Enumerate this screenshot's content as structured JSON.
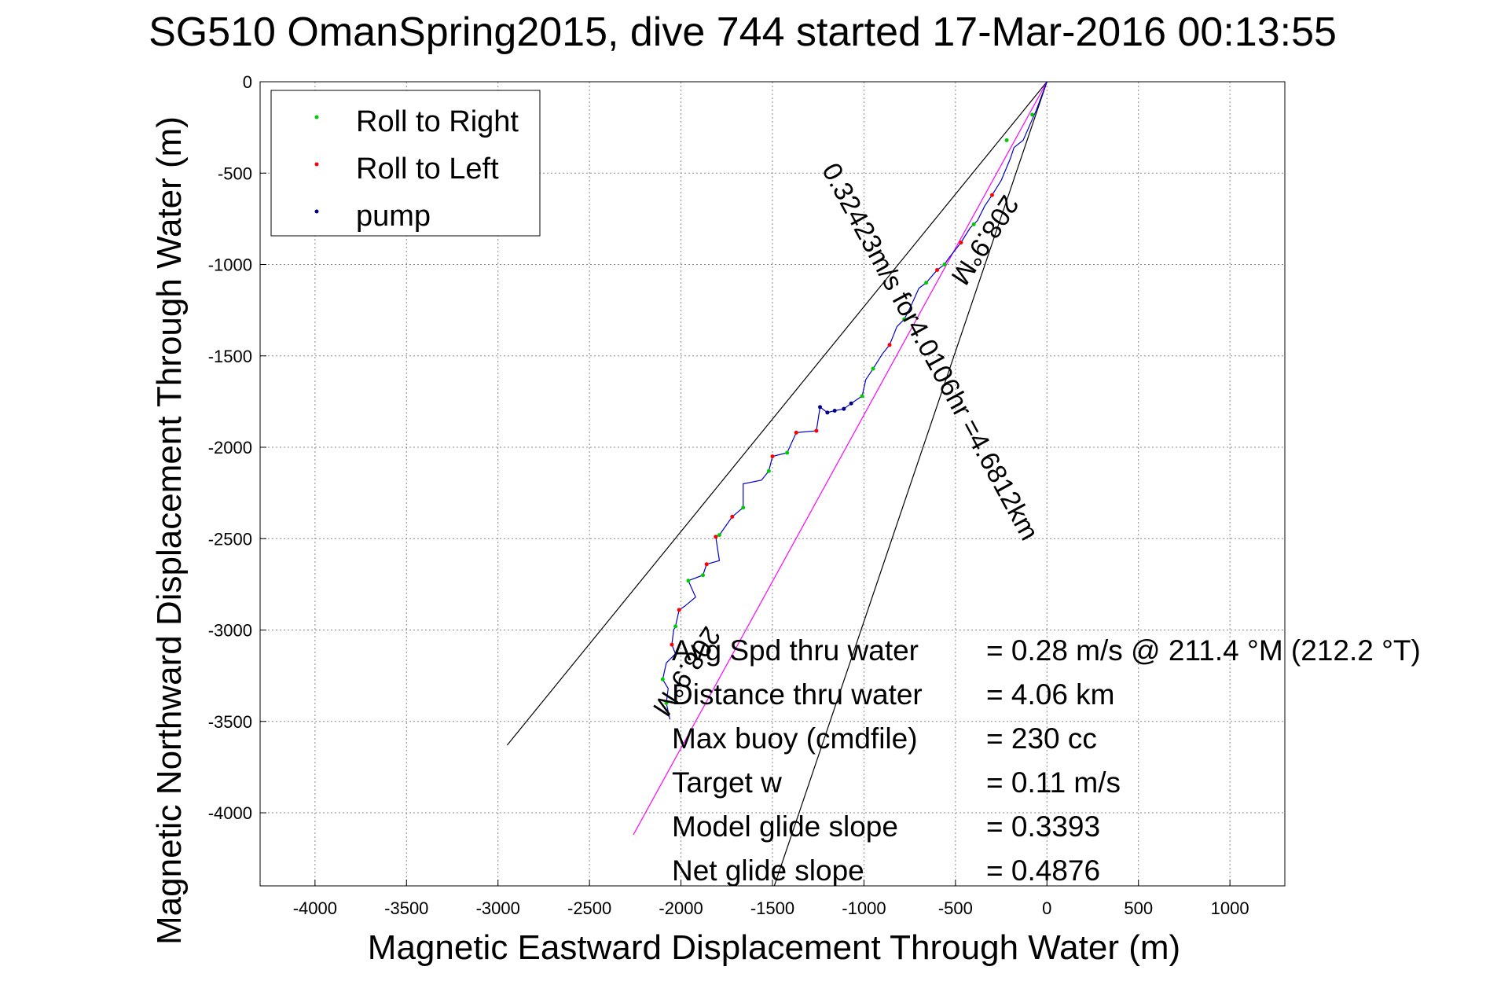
{
  "chart_data": {
    "type": "line",
    "title": "SG510 OmanSpring2015, dive 744 started 17-Mar-2016 00:13:55",
    "xlabel": "Magnetic Eastward Displacement Through Water (m)",
    "ylabel": "Magnetic Northward Displacement Through Water (m)",
    "xlim": [
      -4300,
      1300
    ],
    "ylim": [
      -4400,
      0
    ],
    "xticks": [
      -4000,
      -3500,
      -3000,
      -2500,
      -2000,
      -1500,
      -1000,
      -500,
      0,
      500,
      1000
    ],
    "yticks": [
      0,
      -500,
      -1000,
      -1500,
      -2000,
      -2500,
      -3000,
      -3500,
      -4000
    ],
    "grid": true,
    "legend": {
      "position": "top-left",
      "entries": [
        {
          "label": "Roll to Right",
          "color": "#00cc00"
        },
        {
          "label": "Roll to Left",
          "color": "#ff0000"
        },
        {
          "label": "pump",
          "color": "#000080"
        }
      ]
    },
    "lines": [
      {
        "points": [
          [
            0,
            0
          ],
          [
            -2950,
            -3630
          ]
        ],
        "color": "#000000"
      },
      {
        "points": [
          [
            0,
            0
          ],
          [
            -1490,
            -4400
          ]
        ],
        "color": "#000000"
      },
      {
        "points": [
          [
            0,
            0
          ],
          [
            -2260,
            -4120
          ]
        ],
        "color": "#ff00ff"
      }
    ],
    "track": {
      "color": "#0000cc",
      "points": [
        [
          0,
          0
        ],
        [
          -60,
          -160
        ],
        [
          -130,
          -320
        ],
        [
          -180,
          -360
        ],
        [
          -200,
          -420
        ],
        [
          -250,
          -540
        ],
        [
          -300,
          -620
        ],
        [
          -340,
          -680
        ],
        [
          -380,
          -760
        ],
        [
          -420,
          -800
        ],
        [
          -470,
          -880
        ],
        [
          -540,
          -970
        ],
        [
          -560,
          -1000
        ],
        [
          -600,
          -1030
        ],
        [
          -660,
          -1100
        ],
        [
          -700,
          -1130
        ],
        [
          -740,
          -1220
        ],
        [
          -780,
          -1300
        ],
        [
          -820,
          -1340
        ],
        [
          -860,
          -1440
        ],
        [
          -900,
          -1490
        ],
        [
          -950,
          -1570
        ],
        [
          -990,
          -1630
        ],
        [
          -1010,
          -1720
        ],
        [
          -1070,
          -1760
        ],
        [
          -1110,
          -1790
        ],
        [
          -1160,
          -1800
        ],
        [
          -1200,
          -1810
        ],
        [
          -1240,
          -1780
        ],
        [
          -1260,
          -1910
        ],
        [
          -1370,
          -1920
        ],
        [
          -1420,
          -2030
        ],
        [
          -1500,
          -2050
        ],
        [
          -1520,
          -2130
        ],
        [
          -1560,
          -2180
        ],
        [
          -1660,
          -2200
        ],
        [
          -1660,
          -2330
        ],
        [
          -1720,
          -2380
        ],
        [
          -1790,
          -2480
        ],
        [
          -1810,
          -2490
        ],
        [
          -1790,
          -2620
        ],
        [
          -1860,
          -2640
        ],
        [
          -1880,
          -2700
        ],
        [
          -1960,
          -2730
        ],
        [
          -1920,
          -2820
        ],
        [
          -1980,
          -2870
        ],
        [
          -2010,
          -2890
        ],
        [
          -2030,
          -2980
        ],
        [
          -2040,
          -3000
        ],
        [
          -2050,
          -3080
        ],
        [
          -2030,
          -3130
        ],
        [
          -2080,
          -3180
        ],
        [
          -2100,
          -3270
        ],
        [
          -2070,
          -3320
        ],
        [
          -2080,
          -3400
        ],
        [
          -2060,
          -3490
        ]
      ]
    },
    "markers": {
      "right": [
        [
          -80,
          -180
        ],
        [
          -220,
          -320
        ],
        [
          -400,
          -780
        ],
        [
          -560,
          -1000
        ],
        [
          -660,
          -1100
        ],
        [
          -780,
          -1300
        ],
        [
          -950,
          -1570
        ],
        [
          -1010,
          -1720
        ],
        [
          -1420,
          -2030
        ],
        [
          -1520,
          -2130
        ],
        [
          -1660,
          -2330
        ],
        [
          -1790,
          -2480
        ],
        [
          -1880,
          -2700
        ],
        [
          -1960,
          -2730
        ],
        [
          -2030,
          -2980
        ],
        [
          -2100,
          -3270
        ],
        [
          -2080,
          -3400
        ]
      ],
      "left": [
        [
          -300,
          -620
        ],
        [
          -470,
          -880
        ],
        [
          -600,
          -1030
        ],
        [
          -860,
          -1440
        ],
        [
          -1260,
          -1910
        ],
        [
          -1370,
          -1920
        ],
        [
          -1500,
          -2050
        ],
        [
          -1720,
          -2380
        ],
        [
          -1810,
          -2490
        ],
        [
          -1860,
          -2640
        ],
        [
          -2010,
          -2890
        ],
        [
          -2050,
          -3080
        ]
      ],
      "pump": [
        [
          -1070,
          -1760
        ],
        [
          -1110,
          -1790
        ],
        [
          -1160,
          -1800
        ],
        [
          -1200,
          -1810
        ],
        [
          -1240,
          -1780
        ]
      ]
    },
    "annotations": {
      "heading_upper": "208.9°M",
      "heading_lower": "208.9°M",
      "speed_line": "0.32423m/s for4.0106hr =4.6812km"
    },
    "stats": [
      {
        "label": "Avg Spd thru water",
        "value": "=  0.28 m/s @ 211.4 °M (212.2 °T)"
      },
      {
        "label": "Distance thru water",
        "value": "=  4.06 km"
      },
      {
        "label": "Max buoy (cmdfile)",
        "value": "= 230 cc"
      },
      {
        "label": "Target w",
        "value": "= 0.11 m/s"
      },
      {
        "label": "Model glide slope",
        "value": "= 0.3393"
      },
      {
        "label": "Net glide slope",
        "value": "= 0.4876"
      }
    ]
  }
}
